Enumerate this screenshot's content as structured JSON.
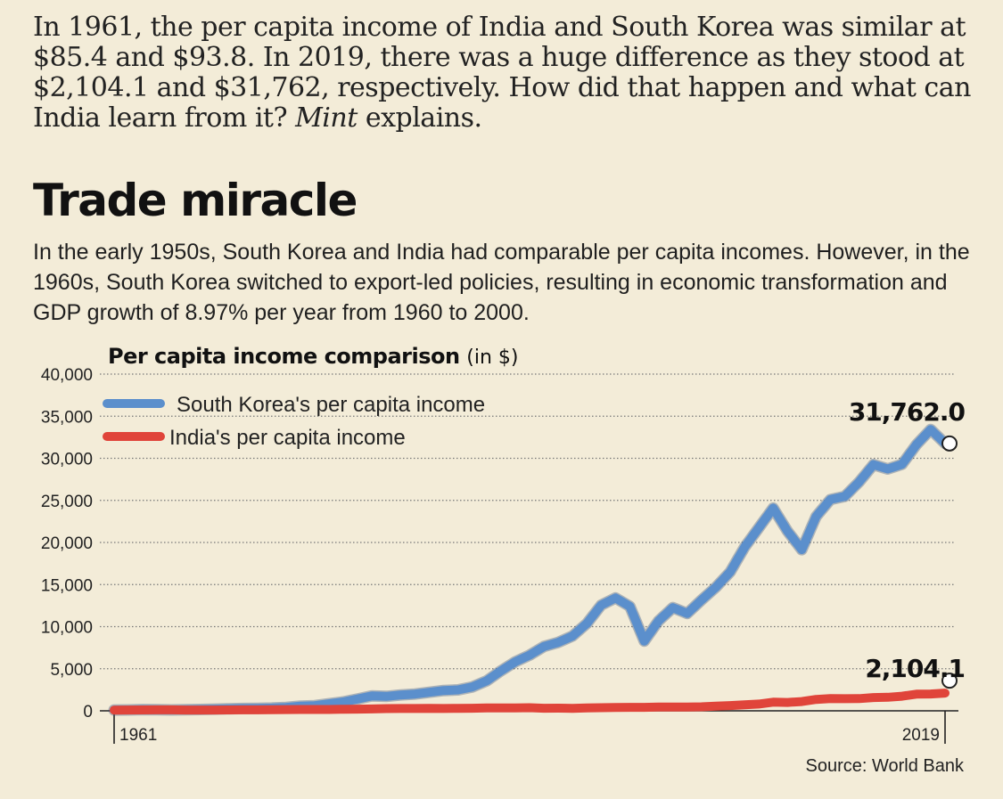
{
  "intro": {
    "text_before_italic": "In 1961, the per capita income of India and South Korea was similar at $85.4 and $93.8. In 2019, there was a huge difference as they stood at $2,104.1 and $31,762, respectively. How did that happen and what can India learn from it? ",
    "italic": "Mint",
    "text_after_italic": " explains."
  },
  "headline": "Trade miracle",
  "deck": "In the early 1950s, South Korea and India had comparable per capita incomes. However, in the 1960s, South Korea switched to export-led policies, resulting in economic transformation and GDP growth of 8.97% per year from 1960 to 2000.",
  "chart_title": "Per capita income comparison",
  "chart_title_unit": "(in $)",
  "source": "Source: World Bank",
  "chart_data": {
    "type": "line",
    "title": "Per capita income comparison",
    "ylabel": "(in $)",
    "xlabel": "",
    "xlim": [
      1961,
      2019
    ],
    "ylim": [
      0,
      40000
    ],
    "y_ticks": [
      0,
      5000,
      10000,
      15000,
      20000,
      25000,
      30000,
      35000,
      40000
    ],
    "y_tick_labels": [
      "0",
      "5,000",
      "10,000",
      "15,000",
      "20,000",
      "25,000",
      "30,000",
      "35,000",
      "40,000"
    ],
    "x_tick_labels": [
      "1961",
      "2019"
    ],
    "grid": true,
    "legend_position": "top-left",
    "series": [
      {
        "name": "South Korea's per capita income",
        "color": "#5b8fcc",
        "end_label": "31,762.0",
        "x": [
          1961,
          1962,
          1963,
          1964,
          1965,
          1966,
          1967,
          1968,
          1969,
          1970,
          1971,
          1972,
          1973,
          1974,
          1975,
          1976,
          1977,
          1978,
          1979,
          1980,
          1981,
          1982,
          1983,
          1984,
          1985,
          1986,
          1987,
          1988,
          1989,
          1990,
          1991,
          1992,
          1993,
          1994,
          1995,
          1996,
          1997,
          1998,
          1999,
          2000,
          2001,
          2002,
          2003,
          2004,
          2005,
          2006,
          2007,
          2008,
          2009,
          2010,
          2011,
          2012,
          2013,
          2014,
          2015,
          2016,
          2017,
          2018,
          2019
        ],
        "values": [
          94,
          106,
          146,
          124,
          109,
          133,
          161,
          197,
          243,
          279,
          301,
          324,
          406,
          564,
          617,
          835,
          1056,
          1404,
          1783,
          1715,
          1883,
          1992,
          2199,
          2413,
          2482,
          2835,
          3555,
          4749,
          5817,
          6610,
          7637,
          8127,
          8885,
          10386,
          12565,
          13403,
          12398,
          8282,
          10672,
          12257,
          11561,
          13165,
          14673,
          16496,
          19403,
          21743,
          24086,
          21350,
          19144,
          23087,
          25096,
          25467,
          27183,
          29250,
          28733,
          29289,
          31617,
          33423,
          31762
        ]
      },
      {
        "name": "India's per capita income",
        "color": "#e0443a",
        "end_label": "2,104.1",
        "x": [
          1961,
          1962,
          1963,
          1964,
          1965,
          1966,
          1967,
          1968,
          1969,
          1970,
          1971,
          1972,
          1973,
          1974,
          1975,
          1976,
          1977,
          1978,
          1979,
          1980,
          1981,
          1982,
          1983,
          1984,
          1985,
          1986,
          1987,
          1988,
          1989,
          1990,
          1991,
          1992,
          1993,
          1994,
          1995,
          1996,
          1997,
          1998,
          1999,
          2000,
          2001,
          2002,
          2003,
          2004,
          2005,
          2006,
          2007,
          2008,
          2009,
          2010,
          2011,
          2012,
          2013,
          2014,
          2015,
          2016,
          2017,
          2018,
          2019
        ],
        "values": [
          85,
          90,
          101,
          116,
          119,
          90,
          96,
          99,
          107,
          112,
          119,
          122,
          143,
          163,
          158,
          161,
          186,
          206,
          224,
          267,
          271,
          274,
          292,
          277,
          296,
          310,
          340,
          354,
          346,
          368,
          303,
          316,
          301,
          346,
          374,
          400,
          415,
          413,
          442,
          443,
          452,
          471,
          547,
          628,
          714,
          806,
          1028,
          999,
          1102,
          1358,
          1458,
          1444,
          1450,
          1574,
          1606,
          1733,
          1981,
          1998,
          2104
        ]
      }
    ]
  }
}
